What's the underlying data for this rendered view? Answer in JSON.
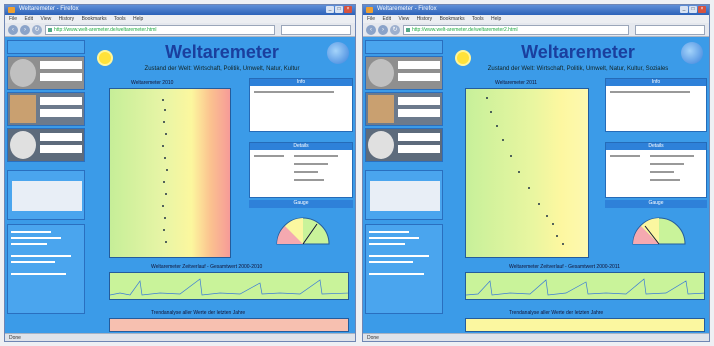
{
  "left_window": {
    "title": "Weltaremeter - Firefox",
    "menu": [
      "File",
      "Edit",
      "View",
      "History",
      "Bookmarks",
      "Tools",
      "Help"
    ],
    "url": "http://www.welt-aremeter.de/weltaremeter.html",
    "page": {
      "site_title": "Weltaremeter",
      "subtitle": "Zustand der Welt: Wirtschaft, Politik, Umwelt, Natur, Kultur",
      "chart_title": "Weltaremeter 2010",
      "panel1_header": "Info",
      "panel2_header": "Details",
      "panel3_header": "Gauge",
      "bottom_caption": "Weltaremeter Zeitverlauf - Gesamtwert 2000-2010",
      "footer_caption": "Trendanalyse aller Werte der letzten Jahre",
      "status": "Done"
    }
  },
  "right_window": {
    "title": "Weltaremeter - Firefox",
    "menu": [
      "File",
      "Edit",
      "View",
      "History",
      "Bookmarks",
      "Tools",
      "Help"
    ],
    "url": "http://www.welt-aremeter.de/weltaremeter2.html",
    "page": {
      "site_title": "Weltaremeter",
      "subtitle": "Zustand der Welt: Wirtschaft, Politik, Umwelt, Natur, Kultur, Soziales",
      "chart_title": "Weltaremeter 2011",
      "panel1_header": "Info",
      "panel2_header": "Details",
      "panel3_header": "Gauge",
      "bottom_caption": "Weltaremeter Zeitverlauf - Gesamtwert 2000-2011",
      "footer_caption": "Trendanalyse aller Werte der letzten Jahre",
      "status": "Done"
    }
  }
}
